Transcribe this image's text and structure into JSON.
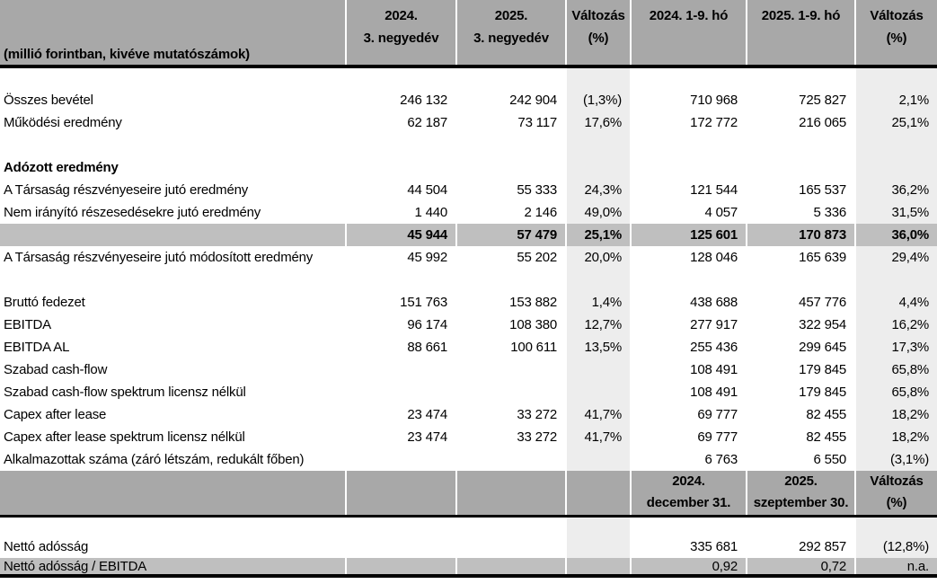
{
  "colors": {
    "header_bg": "#a8a8a8",
    "total_row_bg": "#bfbfbf",
    "change_column_bg": "#ededed",
    "rule": "#000000",
    "cell_separator": "#ffffff"
  },
  "table": {
    "unit_label": "(millió forintban, kivéve mutatószámok)",
    "columns_header": [
      {
        "lines": [
          "2024.",
          "3. negyedév"
        ]
      },
      {
        "lines": [
          "2025.",
          "3. negyedév"
        ]
      },
      {
        "lines": [
          "Változás",
          "(%)"
        ]
      },
      {
        "lines": [
          "2024. 1-9. hó"
        ]
      },
      {
        "lines": [
          "2025. 1-9. hó"
        ]
      },
      {
        "lines": [
          "Változás",
          "(%)"
        ]
      }
    ],
    "mid_header": [
      {
        "lines": [
          "",
          ""
        ]
      },
      {
        "lines": [
          "",
          ""
        ]
      },
      {
        "lines": [
          "",
          ""
        ]
      },
      {
        "lines": [
          "2024.",
          "december 31."
        ]
      },
      {
        "lines": [
          "2025.",
          "szeptember 30."
        ]
      },
      {
        "lines": [
          "Változás",
          "(%)"
        ]
      }
    ],
    "rows": [
      {
        "type": "spacer"
      },
      {
        "type": "data",
        "label": "Összes bevétel",
        "values": [
          "246 132",
          "242 904",
          "(1,3%)",
          "710 968",
          "725 827",
          "2,1%"
        ]
      },
      {
        "type": "data",
        "label": "Működési eredmény",
        "values": [
          "62 187",
          "73 117",
          "17,6%",
          "172 772",
          "216 065",
          "25,1%"
        ]
      },
      {
        "type": "spacer"
      },
      {
        "type": "section",
        "label": "Adózott eredmény",
        "values": [
          "",
          "",
          "",
          "",
          "",
          ""
        ]
      },
      {
        "type": "data",
        "label": "A Társaság részvényeseire jutó eredmény",
        "values": [
          "44 504",
          "55 333",
          "24,3%",
          "121 544",
          "165 537",
          "36,2%"
        ]
      },
      {
        "type": "data",
        "label": "Nem irányító részesedésekre jutó eredmény",
        "values": [
          "1 440",
          "2 146",
          "49,0%",
          "4 057",
          "5 336",
          "31,5%"
        ]
      },
      {
        "type": "total",
        "label": "",
        "values": [
          "45 944",
          "57 479",
          "25,1%",
          "125 601",
          "170 873",
          "36,0%"
        ]
      },
      {
        "type": "data",
        "label": "A Társaság részvényeseire jutó módosított eredmény",
        "values": [
          "45 992",
          "55 202",
          "20,0%",
          "128 046",
          "165 639",
          "29,4%"
        ]
      },
      {
        "type": "spacer"
      },
      {
        "type": "data",
        "label": "Bruttó fedezet",
        "values": [
          "151 763",
          "153 882",
          "1,4%",
          "438 688",
          "457 776",
          "4,4%"
        ]
      },
      {
        "type": "data",
        "label": "EBITDA",
        "values": [
          "96 174",
          "108 380",
          "12,7%",
          "277 917",
          "322 954",
          "16,2%"
        ]
      },
      {
        "type": "data",
        "label": "EBITDA AL",
        "values": [
          "88 661",
          "100 611",
          "13,5%",
          "255 436",
          "299 645",
          "17,3%"
        ]
      },
      {
        "type": "data",
        "label": "Szabad cash-flow",
        "values": [
          "",
          "",
          "",
          "108 491",
          "179 845",
          "65,8%"
        ]
      },
      {
        "type": "data",
        "label": "Szabad cash-flow spektrum licensz nélkül",
        "values": [
          "",
          "",
          "",
          "108 491",
          "179 845",
          "65,8%"
        ]
      },
      {
        "type": "data",
        "label": "Capex after lease",
        "values": [
          "23 474",
          "33 272",
          "41,7%",
          "69 777",
          "82 455",
          "18,2%"
        ]
      },
      {
        "type": "data",
        "label": "Capex after lease spektrum licensz nélkül",
        "values": [
          "23 474",
          "33 272",
          "41,7%",
          "69 777",
          "82 455",
          "18,2%"
        ]
      },
      {
        "type": "data",
        "label": "Alkalmazottak száma (záró létszám, redukált főben)",
        "values": [
          "",
          "",
          "",
          "6 763",
          "6 550",
          "(3,1%)"
        ]
      },
      {
        "type": "mid_header"
      },
      {
        "type": "spacer_sm"
      },
      {
        "type": "data",
        "label": "Nettó adósság",
        "values": [
          "",
          "",
          "",
          "335 681",
          "292 857",
          "(12,8%)"
        ]
      },
      {
        "type": "gray",
        "label": "Nettó adósság / EBITDA",
        "values": [
          "",
          "",
          "",
          "0,92",
          "0,72",
          "n.a."
        ]
      }
    ]
  }
}
